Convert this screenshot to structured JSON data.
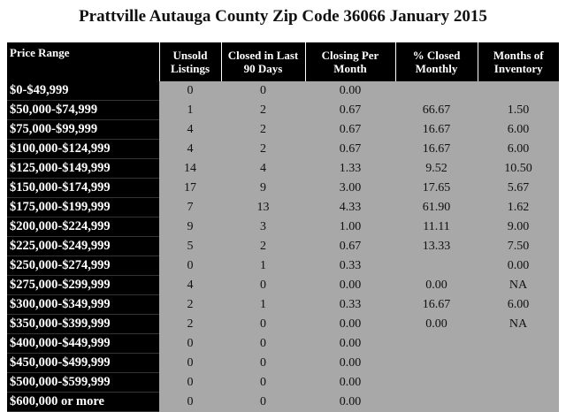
{
  "title": "Prattville Autauga County Zip Code 36066 January  2015",
  "table": {
    "header": [
      "Price Range",
      "Unsold Listings",
      "Closed in Last 90 Days",
      "Closing Per Month",
      "% Closed Monthly",
      "Months of Inventory"
    ],
    "rows": [
      [
        "$0-$49,999",
        "0",
        "0",
        "0.00",
        null,
        null
      ],
      [
        "$50,000-$74,999",
        "1",
        "2",
        "0.67",
        "66.67",
        "1.50"
      ],
      [
        "$75,000-$99,999",
        "4",
        "2",
        "0.67",
        "16.67",
        "6.00"
      ],
      [
        "$100,000-$124,999",
        "4",
        "2",
        "0.67",
        "16.67",
        "6.00"
      ],
      [
        "$125,000-$149,999",
        "14",
        "4",
        "1.33",
        "9.52",
        "10.50"
      ],
      [
        "$150,000-$174,999",
        "17",
        "9",
        "3.00",
        "17.65",
        "5.67"
      ],
      [
        "$175,000-$199,999",
        "7",
        "13",
        "4.33",
        "61.90",
        "1.62"
      ],
      [
        "$200,000-$224,999",
        "9",
        "3",
        "1.00",
        "11.11",
        "9.00"
      ],
      [
        "$225,000-$249,999",
        "5",
        "2",
        "0.67",
        "13.33",
        "7.50"
      ],
      [
        "$250,000-$274,999",
        "0",
        "1",
        "0.33",
        null,
        "0.00"
      ],
      [
        "$275,000-$299,999",
        "4",
        "0",
        "0.00",
        "0.00",
        "NA"
      ],
      [
        "$300,000-$349,999",
        "2",
        "1",
        "0.33",
        "16.67",
        "6.00"
      ],
      [
        "$350,000-$399,999",
        "2",
        "0",
        "0.00",
        "0.00",
        "NA"
      ],
      [
        "$400,000-$449,999",
        "0",
        "0",
        "0.00",
        null,
        null
      ],
      [
        "$450,000-$499,999",
        "0",
        "0",
        "0.00",
        null,
        null
      ],
      [
        "$500,000-$599,999",
        "0",
        "0",
        "0.00",
        null,
        null
      ],
      [
        "$600,000 or more",
        "0",
        "0",
        "0.00",
        null,
        null
      ]
    ]
  }
}
